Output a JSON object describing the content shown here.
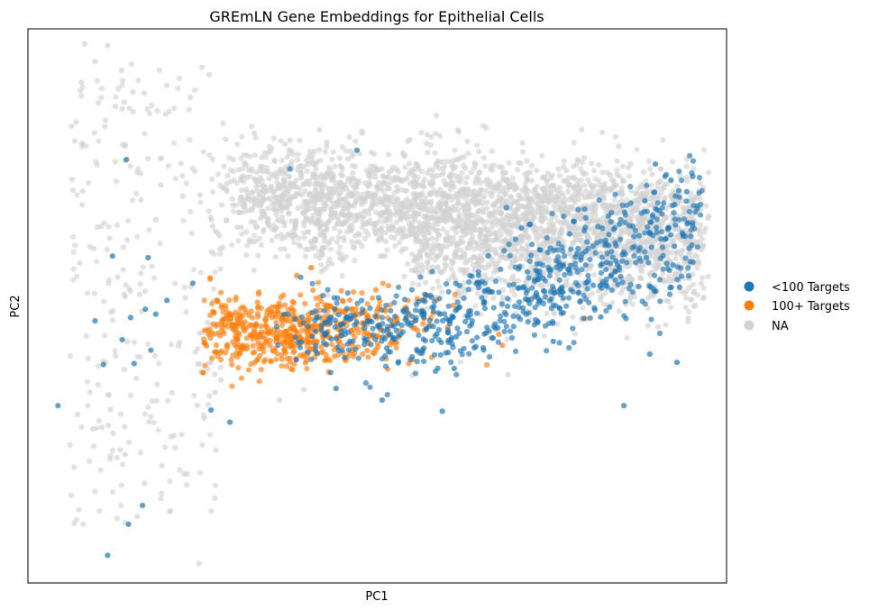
{
  "chart_data": {
    "type": "scatter",
    "title": "GREmLN Gene Embeddings for Epithelial Cells",
    "xlabel": "PC1",
    "ylabel": "PC2",
    "xticks": false,
    "yticks": false,
    "grid": false,
    "xlim": [
      0,
      100
    ],
    "ylim": [
      0,
      100
    ],
    "legend_position": "right-outside",
    "colors": {
      "lt100": "#1f77b4",
      "ge100": "#ff7f0e",
      "na": "#d3d3d3"
    },
    "series": [
      {
        "name": "<100 Targets",
        "color": "#1f77b4",
        "x": [
          4.3,
          14.1,
          9.6,
          16.8,
          17.2,
          18.3,
          19.9,
          13.5,
          15.2,
          17.6,
          10.8,
          14.7,
          23.6,
          26.2,
          28.9,
          37.5,
          47.1,
          59.3,
          85.3,
          89.8,
          94.3,
          92.9,
          89.0,
          88.3,
          82.0,
          72.9,
          75.2,
          59.0,
          61.0,
          44.1,
          50.7,
          38.4,
          39.1,
          14.4,
          11.4,
          12.1,
          16.4
        ],
        "y": [
          32.0,
          76.4,
          47.3,
          49.4,
          58.7,
          48.5,
          51.0,
          43.9,
          39.6,
          42.0,
          39.4,
          47.9,
          54.1,
          31.2,
          29.0,
          74.7,
          78.1,
          31.0,
          32.0,
          75.6,
          70.6,
          39.8,
          41.3,
          69.0,
          48.0,
          56.2,
          43.6,
          48.5,
          38.7,
          35.1,
          33.0,
          40.3,
          43.5,
          10.6,
          5.0,
          59.0,
          14.0
        ]
      },
      {
        "name": "100+ Targets",
        "color": "#ff7f0e",
        "x": [
          30.8,
          34.8,
          38.5,
          40.5,
          36.3,
          42.7,
          55.1,
          60.1,
          52.8,
          46.4,
          30.0,
          33.2,
          27.9,
          40.9,
          44.8,
          55.4,
          50.1,
          60.9,
          57.8,
          49.8,
          29.9,
          35.8,
          52.2,
          67.4,
          47.1,
          56.7,
          67.9,
          79.8,
          49.8,
          42.2,
          51.5,
          45.4,
          53.1,
          25.9
        ],
        "y": [
          49.8,
          48.9,
          55.5,
          56.9,
          41.1,
          40.3,
          40.3,
          46.2,
          43.4,
          41.9,
          43.8,
          44.9,
          47.6,
          43.5,
          44.7,
          47.3,
          49.5,
          50.1,
          40.7,
          42.1,
          46.4,
          49.0,
          43.8,
          44.9,
          46.0,
          47.7,
          42.9,
          47.7,
          52.9,
          47.9,
          38.6,
          40.4,
          44.4,
          44.9
        ]
      },
      {
        "name": "NA",
        "color": "#d3d3d3",
        "x": [
          8.1,
          11.4,
          9.6,
          13.4,
          15.0,
          12.5,
          13.9,
          16.1,
          7.8,
          19.0,
          28.3,
          33.3,
          31.0,
          37.5,
          41.7,
          45.2,
          46.3,
          49.8,
          60.8,
          80.7,
          85.1,
          89.3,
          94.6,
          94.6,
          89.4,
          87.9,
          84.7,
          82.0,
          76.3,
          67.4,
          59.6,
          73.8,
          87.2,
          7.1,
          10.6,
          12.2,
          13.2,
          16.7,
          13.9,
          11.8,
          20.5,
          22.8,
          24.5,
          21.7,
          24.6,
          39.5,
          36.0,
          26.8,
          55.0,
          68.7,
          57.1,
          42.0
        ],
        "y": [
          97.3,
          97.0,
          94.1,
          92.5,
          88.6,
          86.0,
          76.2,
          73.9,
          70.7,
          71.8,
          80.1,
          75.1,
          68.3,
          72.2,
          69.2,
          71.4,
          72.8,
          70.3,
          72.2,
          75.7,
          70.0,
          68.2,
          65.9,
          63.2,
          61.0,
          60.0,
          62.5,
          64.6,
          67.2,
          69.0,
          65.5,
          61.4,
          53.5,
          30.4,
          28.1,
          27.0,
          24.0,
          18.0,
          23.2,
          31.3,
          26.4,
          19.7,
          3.5,
          43.4,
          39.5,
          34.9,
          33.0,
          34.4,
          37.5,
          37.6,
          59.3,
          56.2
        ]
      }
    ]
  }
}
